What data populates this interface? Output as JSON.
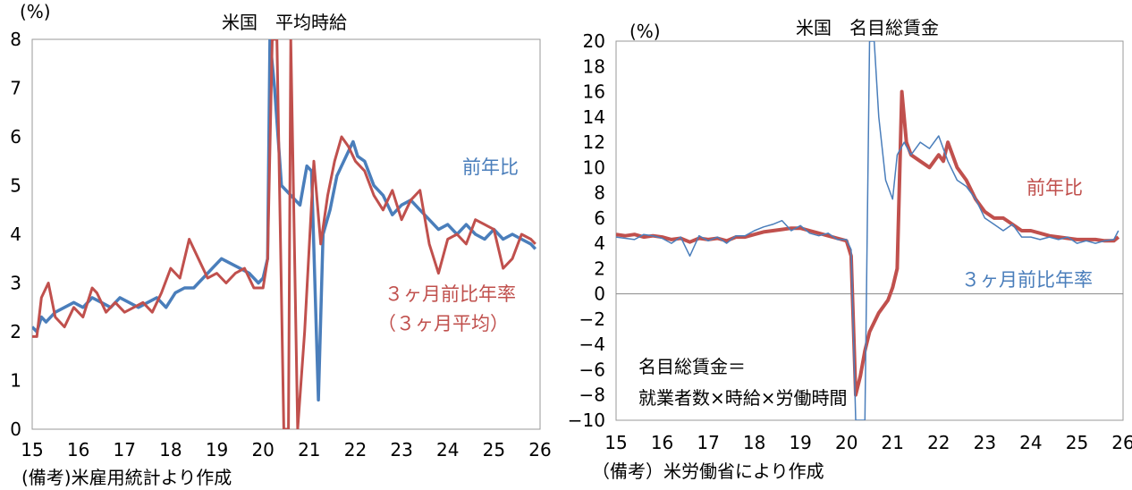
{
  "chart_data": [
    {
      "type": "line",
      "title": "米国　平均時給",
      "ylabel": "(%)",
      "ylim": [
        0,
        8
      ],
      "yticks": [
        "0",
        "1",
        "2",
        "3",
        "4",
        "5",
        "6",
        "7",
        "8"
      ],
      "xlim": [
        15,
        26
      ],
      "xticks": [
        "15",
        "16",
        "17",
        "18",
        "19",
        "20",
        "21",
        "22",
        "23",
        "24",
        "25",
        "26"
      ],
      "grid": false,
      "note": "(備考)米雇用統計より作成",
      "series": [
        {
          "name": "前年比",
          "color": "#4a7ebb",
          "x": [
            15.0,
            15.1,
            15.2,
            15.3,
            15.5,
            15.7,
            15.9,
            16.1,
            16.3,
            16.5,
            16.7,
            16.9,
            17.1,
            17.3,
            17.5,
            17.7,
            17.9,
            18.1,
            18.3,
            18.5,
            18.7,
            18.9,
            19.1,
            19.3,
            19.5,
            19.7,
            19.9,
            20.0,
            20.1,
            20.15,
            20.25,
            20.4,
            20.6,
            20.8,
            20.95,
            21.05,
            21.2,
            21.3,
            21.45,
            21.6,
            21.8,
            21.95,
            22.05,
            22.2,
            22.4,
            22.6,
            22.8,
            23.0,
            23.2,
            23.4,
            23.6,
            23.8,
            24.0,
            24.2,
            24.4,
            24.6,
            24.8,
            25.0,
            25.2,
            25.4,
            25.6,
            25.8,
            25.9
          ],
          "y": [
            2.1,
            2.0,
            2.3,
            2.2,
            2.4,
            2.5,
            2.6,
            2.5,
            2.7,
            2.6,
            2.5,
            2.7,
            2.6,
            2.5,
            2.6,
            2.7,
            2.5,
            2.8,
            2.9,
            2.9,
            3.1,
            3.3,
            3.5,
            3.4,
            3.3,
            3.2,
            3.0,
            3.1,
            3.5,
            8.0,
            7.0,
            5.0,
            4.8,
            4.6,
            5.4,
            5.3,
            0.6,
            4.0,
            4.5,
            5.2,
            5.6,
            5.9,
            5.6,
            5.5,
            5.0,
            4.8,
            4.4,
            4.6,
            4.7,
            4.5,
            4.3,
            4.1,
            4.2,
            4.0,
            4.2,
            4.0,
            3.9,
            4.1,
            3.9,
            4.0,
            3.9,
            3.8,
            3.7
          ]
        },
        {
          "name": "３ヶ月前比年率\n（３ヶ月平均）",
          "color": "#c0504d",
          "x": [
            15.0,
            15.1,
            15.2,
            15.35,
            15.5,
            15.7,
            15.9,
            16.1,
            16.3,
            16.4,
            16.6,
            16.8,
            17.0,
            17.2,
            17.4,
            17.6,
            17.8,
            18.0,
            18.2,
            18.4,
            18.6,
            18.8,
            19.0,
            19.2,
            19.4,
            19.6,
            19.8,
            20.0,
            20.1,
            20.2,
            20.3,
            20.45,
            20.55,
            20.6,
            20.75,
            20.9,
            21.1,
            21.25,
            21.4,
            21.55,
            21.7,
            21.85,
            22.0,
            22.2,
            22.4,
            22.6,
            22.8,
            23.0,
            23.2,
            23.4,
            23.6,
            23.8,
            24.0,
            24.2,
            24.4,
            24.6,
            24.8,
            25.0,
            25.2,
            25.4,
            25.6,
            25.8,
            25.9
          ],
          "y": [
            1.9,
            1.9,
            2.7,
            3.0,
            2.3,
            2.1,
            2.5,
            2.3,
            2.9,
            2.8,
            2.4,
            2.6,
            2.4,
            2.5,
            2.6,
            2.4,
            2.8,
            3.3,
            3.1,
            3.9,
            3.5,
            3.1,
            3.2,
            3.0,
            3.2,
            3.3,
            2.9,
            2.9,
            3.5,
            8.0,
            8.0,
            0.0,
            0.0,
            8.0,
            0.0,
            2.0,
            5.5,
            3.8,
            4.8,
            5.5,
            6.0,
            5.8,
            5.5,
            5.3,
            4.8,
            4.5,
            4.9,
            4.3,
            4.7,
            4.9,
            3.8,
            3.2,
            3.9,
            4.0,
            3.8,
            4.3,
            4.2,
            4.1,
            3.3,
            3.5,
            4.0,
            3.9,
            3.8
          ]
        }
      ],
      "labels": {
        "blue": "前年比",
        "red_line1": "３ヶ月前比年率",
        "red_line2": "（３ヶ月平均）"
      }
    },
    {
      "type": "line",
      "title": "米国　名目総賃金",
      "ylabel": "(%)",
      "ylim": [
        -10,
        20
      ],
      "yticks": [
        "−10",
        "−8",
        "−6",
        "−4",
        "−2",
        "0",
        "2",
        "4",
        "6",
        "8",
        "10",
        "12",
        "14",
        "16",
        "18",
        "20"
      ],
      "xlim": [
        15,
        26
      ],
      "xticks": [
        "15",
        "16",
        "17",
        "18",
        "19",
        "20",
        "21",
        "22",
        "23",
        "24",
        "25",
        "26"
      ],
      "grid": false,
      "zero_line": true,
      "note": "（備考）米労働省により作成",
      "annotation_line1": "名目総賃金＝",
      "annotation_line2": "就業者数×時給×労働時間",
      "series": [
        {
          "name": "前年比",
          "color": "#c0504d",
          "x": [
            15.0,
            15.2,
            15.4,
            15.6,
            15.8,
            16.0,
            16.2,
            16.4,
            16.6,
            16.8,
            17.0,
            17.2,
            17.4,
            17.6,
            17.8,
            18.0,
            18.2,
            18.4,
            18.6,
            18.8,
            19.0,
            19.2,
            19.4,
            19.6,
            19.8,
            20.0,
            20.1,
            20.2,
            20.3,
            20.4,
            20.5,
            20.7,
            20.9,
            21.0,
            21.1,
            21.2,
            21.3,
            21.4,
            21.6,
            21.8,
            22.0,
            22.1,
            22.2,
            22.4,
            22.6,
            22.8,
            23.0,
            23.2,
            23.4,
            23.6,
            23.8,
            24.0,
            24.2,
            24.4,
            24.6,
            24.8,
            25.0,
            25.2,
            25.4,
            25.6,
            25.8,
            25.9
          ],
          "y": [
            4.7,
            4.6,
            4.7,
            4.5,
            4.6,
            4.5,
            4.3,
            4.4,
            4.1,
            4.4,
            4.3,
            4.4,
            4.2,
            4.5,
            4.5,
            4.7,
            4.9,
            5.0,
            5.1,
            5.2,
            5.2,
            5.0,
            4.8,
            4.6,
            4.4,
            4.2,
            3.0,
            -8.0,
            -6.5,
            -4.5,
            -3.0,
            -1.5,
            -0.5,
            0.5,
            2.0,
            16.0,
            12.0,
            11.0,
            10.5,
            10.0,
            11.0,
            10.5,
            12.0,
            10.0,
            9.0,
            7.5,
            6.5,
            6.0,
            6.0,
            5.5,
            5.0,
            5.0,
            4.8,
            4.6,
            4.5,
            4.4,
            4.3,
            4.3,
            4.3,
            4.2,
            4.2,
            4.5
          ]
        },
        {
          "name": "３ヶ月前比年率",
          "color": "#4a7ebb",
          "x": [
            15.0,
            15.2,
            15.4,
            15.6,
            15.8,
            16.0,
            16.2,
            16.4,
            16.6,
            16.8,
            17.0,
            17.2,
            17.4,
            17.6,
            17.8,
            18.0,
            18.2,
            18.4,
            18.6,
            18.8,
            19.0,
            19.2,
            19.4,
            19.6,
            19.8,
            20.0,
            20.1,
            20.2,
            20.3,
            20.4,
            20.5,
            20.6,
            20.7,
            20.85,
            21.0,
            21.1,
            21.25,
            21.4,
            21.6,
            21.8,
            22.0,
            22.2,
            22.4,
            22.6,
            22.8,
            23.0,
            23.2,
            23.4,
            23.6,
            23.8,
            24.0,
            24.2,
            24.4,
            24.6,
            24.8,
            25.0,
            25.2,
            25.4,
            25.6,
            25.8,
            25.9
          ],
          "y": [
            4.5,
            4.4,
            4.3,
            4.7,
            4.6,
            4.4,
            4.0,
            4.5,
            3.0,
            4.6,
            4.2,
            4.5,
            4.0,
            4.6,
            4.6,
            5.0,
            5.3,
            5.5,
            5.8,
            5.0,
            5.4,
            4.8,
            4.6,
            4.8,
            4.3,
            4.3,
            3.5,
            -10.0,
            -10.0,
            -10.0,
            20.0,
            20.0,
            14.0,
            9.0,
            7.5,
            11.0,
            12.0,
            11.0,
            12.0,
            11.5,
            12.5,
            10.5,
            9.0,
            8.5,
            7.5,
            6.0,
            5.5,
            5.0,
            5.5,
            4.5,
            4.5,
            4.3,
            4.5,
            4.3,
            4.5,
            4.0,
            4.2,
            4.0,
            4.2,
            4.3,
            5.0
          ]
        }
      ],
      "labels": {
        "red": "前年比",
        "blue": "３ヶ月前比年率"
      }
    }
  ]
}
